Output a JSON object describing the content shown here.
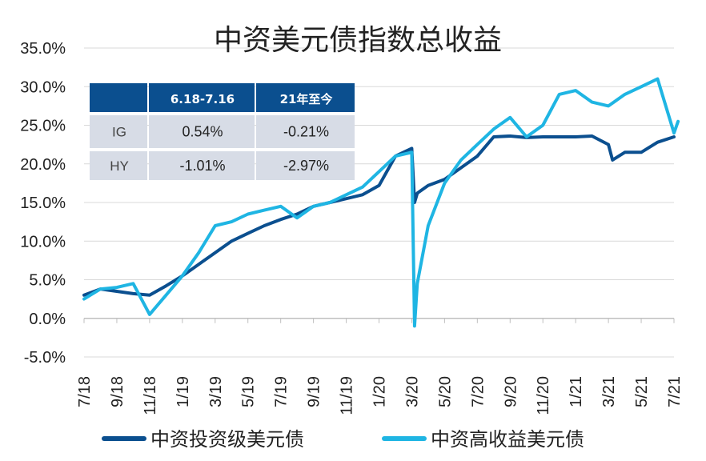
{
  "chart_data": {
    "type": "line",
    "title": "中资美元债指数总收益",
    "xlabel": "",
    "ylabel": "",
    "x_tick_labels": [
      "7/18",
      "9/18",
      "11/18",
      "1/19",
      "3/19",
      "5/19",
      "7/19",
      "9/19",
      "11/19",
      "1/20",
      "3/20",
      "5/20",
      "7/20",
      "9/20",
      "11/20",
      "1/21",
      "3/21",
      "5/21",
      "7/21"
    ],
    "y_tick_labels": [
      "35.0%",
      "30.0%",
      "25.0%",
      "20.0%",
      "15.0%",
      "10.0%",
      "5.0%",
      "0.0%",
      "-5.0%"
    ],
    "ylim": [
      -5,
      35
    ],
    "y_unit": "%",
    "grid": "horizontal",
    "legend_position": "bottom",
    "series": [
      {
        "name": "中资投资级美元债",
        "color": "#0b4f8f",
        "x": [
          "7/18",
          "8/18",
          "9/18",
          "10/18",
          "11/18",
          "12/18",
          "1/19",
          "2/19",
          "3/19",
          "4/19",
          "5/19",
          "6/19",
          "7/19",
          "8/19",
          "9/19",
          "10/19",
          "11/19",
          "12/19",
          "1/20",
          "2/20",
          "3/20",
          "3/20",
          "3/20",
          "4/20",
          "5/20",
          "6/20",
          "7/20",
          "8/20",
          "9/20",
          "10/20",
          "11/20",
          "12/20",
          "1/21",
          "2/21",
          "3/21",
          "3/21",
          "4/21",
          "5/21",
          "6/21",
          "7/21"
        ],
        "values": [
          3.0,
          3.8,
          3.5,
          3.2,
          3.0,
          4.2,
          5.5,
          7.0,
          8.5,
          10.0,
          11.0,
          12.0,
          12.8,
          13.5,
          14.5,
          15.0,
          15.5,
          16.0,
          17.2,
          21.0,
          22.0,
          15.0,
          16.2,
          17.2,
          18.0,
          19.5,
          21.0,
          23.5,
          23.6,
          23.4,
          23.5,
          23.5,
          23.5,
          23.6,
          22.5,
          20.5,
          21.5,
          21.5,
          22.8,
          23.5
        ]
      },
      {
        "name": "中资高收益美元债",
        "color": "#1fb5e3",
        "x": [
          "7/18",
          "8/18",
          "9/18",
          "10/18",
          "11/18",
          "12/18",
          "1/19",
          "2/19",
          "3/19",
          "4/19",
          "5/19",
          "6/19",
          "7/19",
          "8/19",
          "9/19",
          "10/19",
          "11/19",
          "12/19",
          "1/20",
          "2/20",
          "3/20",
          "3/20",
          "3/20",
          "4/20",
          "5/20",
          "6/20",
          "7/20",
          "8/20",
          "9/20",
          "10/20",
          "11/20",
          "12/20",
          "1/21",
          "2/21",
          "3/21",
          "4/21",
          "5/21",
          "6/21",
          "7/21",
          "7/21"
        ],
        "values": [
          2.5,
          3.8,
          4.0,
          4.5,
          0.5,
          3.0,
          5.5,
          8.5,
          12.0,
          12.5,
          13.5,
          14.0,
          14.5,
          13.0,
          14.5,
          15.0,
          16.0,
          17.0,
          19.0,
          21.0,
          21.5,
          -1.0,
          4.5,
          12.0,
          17.5,
          20.5,
          22.5,
          24.5,
          26.0,
          23.5,
          25.0,
          29.0,
          29.5,
          28.0,
          27.5,
          29.0,
          30.0,
          31.0,
          24.0,
          25.5
        ]
      }
    ],
    "table": {
      "headers": [
        "",
        "6.18-7.16",
        "21年至今"
      ],
      "rows": [
        {
          "label": "IG",
          "values": [
            "0.54%",
            "-0.21%"
          ]
        },
        {
          "label": "HY",
          "values": [
            "-1.01%",
            "-2.97%"
          ]
        }
      ],
      "header_color": "#0b4f8f",
      "row_color": "#d7dce6"
    }
  }
}
